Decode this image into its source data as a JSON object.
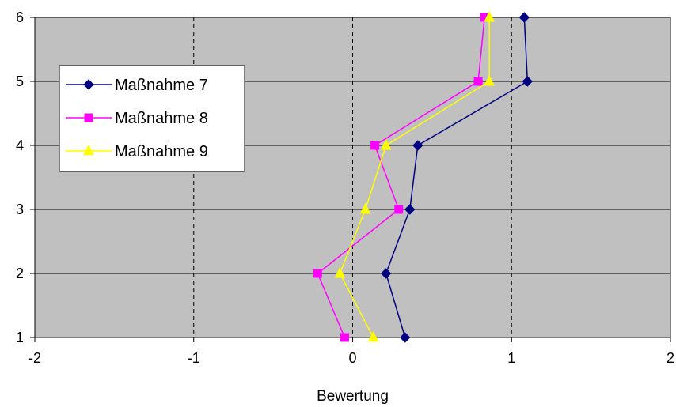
{
  "chart_data": {
    "type": "line",
    "orientation": "horizontal-values",
    "title": "",
    "xlabel": "Bewertung",
    "ylabel": "",
    "xlim": [
      -2,
      2
    ],
    "ylim": [
      1,
      6
    ],
    "x_ticks": [
      "-2",
      "-1",
      "0",
      "1",
      "2"
    ],
    "y_ticks": [
      "1",
      "2",
      "3",
      "4",
      "5",
      "6"
    ],
    "categories": [
      1,
      2,
      3,
      4,
      5,
      6
    ],
    "grid": {
      "horizontal": "solid",
      "vertical": "dashed"
    },
    "plot_background": "#c0c0c0",
    "legend_position": "upper-left",
    "series": [
      {
        "name": "Maßnahme 7",
        "color": "#000080",
        "marker": "diamond",
        "values": [
          0.33,
          0.21,
          0.36,
          0.41,
          1.1,
          1.08
        ]
      },
      {
        "name": "Maßnahme 8",
        "color": "#ff00ff",
        "marker": "square",
        "values": [
          -0.05,
          -0.22,
          0.29,
          0.14,
          0.79,
          0.83
        ]
      },
      {
        "name": "Maßnahme 9",
        "color": "#ffff00",
        "marker": "triangle",
        "values": [
          0.13,
          -0.08,
          0.08,
          0.21,
          0.86,
          0.86
        ]
      }
    ]
  }
}
